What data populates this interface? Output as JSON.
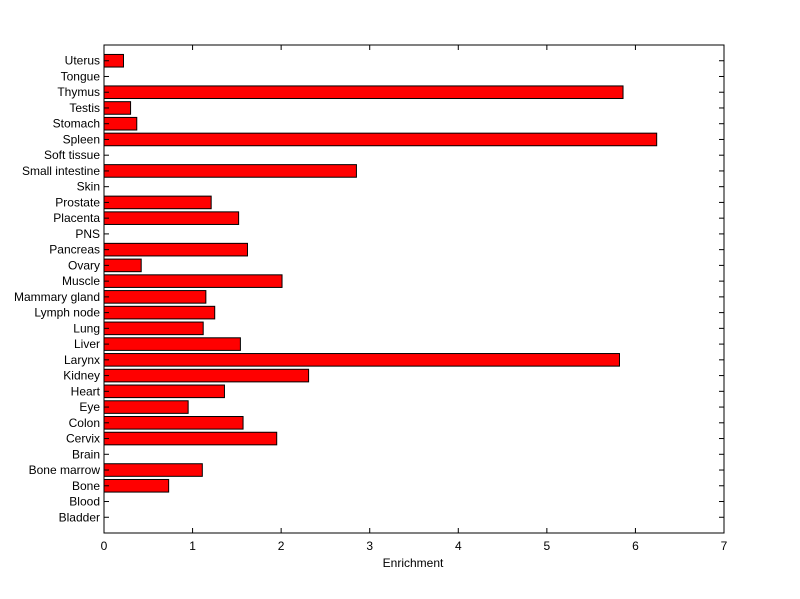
{
  "chart_data": {
    "type": "bar",
    "orientation": "horizontal",
    "title": "",
    "xlabel": "Enrichment",
    "ylabel": "",
    "xlim": [
      0,
      7
    ],
    "xticks": [
      0,
      1,
      2,
      3,
      4,
      5,
      6,
      7
    ],
    "grid": false,
    "legend": "none",
    "bar_color": "#ff0000",
    "edge_color": "#000000",
    "categories": [
      "Bladder",
      "Blood",
      "Bone",
      "Bone marrow",
      "Brain",
      "Cervix",
      "Colon",
      "Eye",
      "Heart",
      "Kidney",
      "Larynx",
      "Liver",
      "Lung",
      "Lymph node",
      "Mammary gland",
      "Muscle",
      "Ovary",
      "Pancreas",
      "PNS",
      "Placenta",
      "Prostate",
      "Skin",
      "Small intestine",
      "Soft tissue",
      "Spleen",
      "Stomach",
      "Testis",
      "Thymus",
      "Tongue",
      "Uterus"
    ],
    "values": [
      0,
      0,
      0.73,
      1.11,
      0,
      1.95,
      1.57,
      0.95,
      1.36,
      2.31,
      5.82,
      1.54,
      1.12,
      1.25,
      1.15,
      2.01,
      0.42,
      1.62,
      0,
      1.52,
      1.21,
      0,
      2.85,
      0,
      6.24,
      0.37,
      0.3,
      5.86,
      0,
      0.22
    ]
  }
}
